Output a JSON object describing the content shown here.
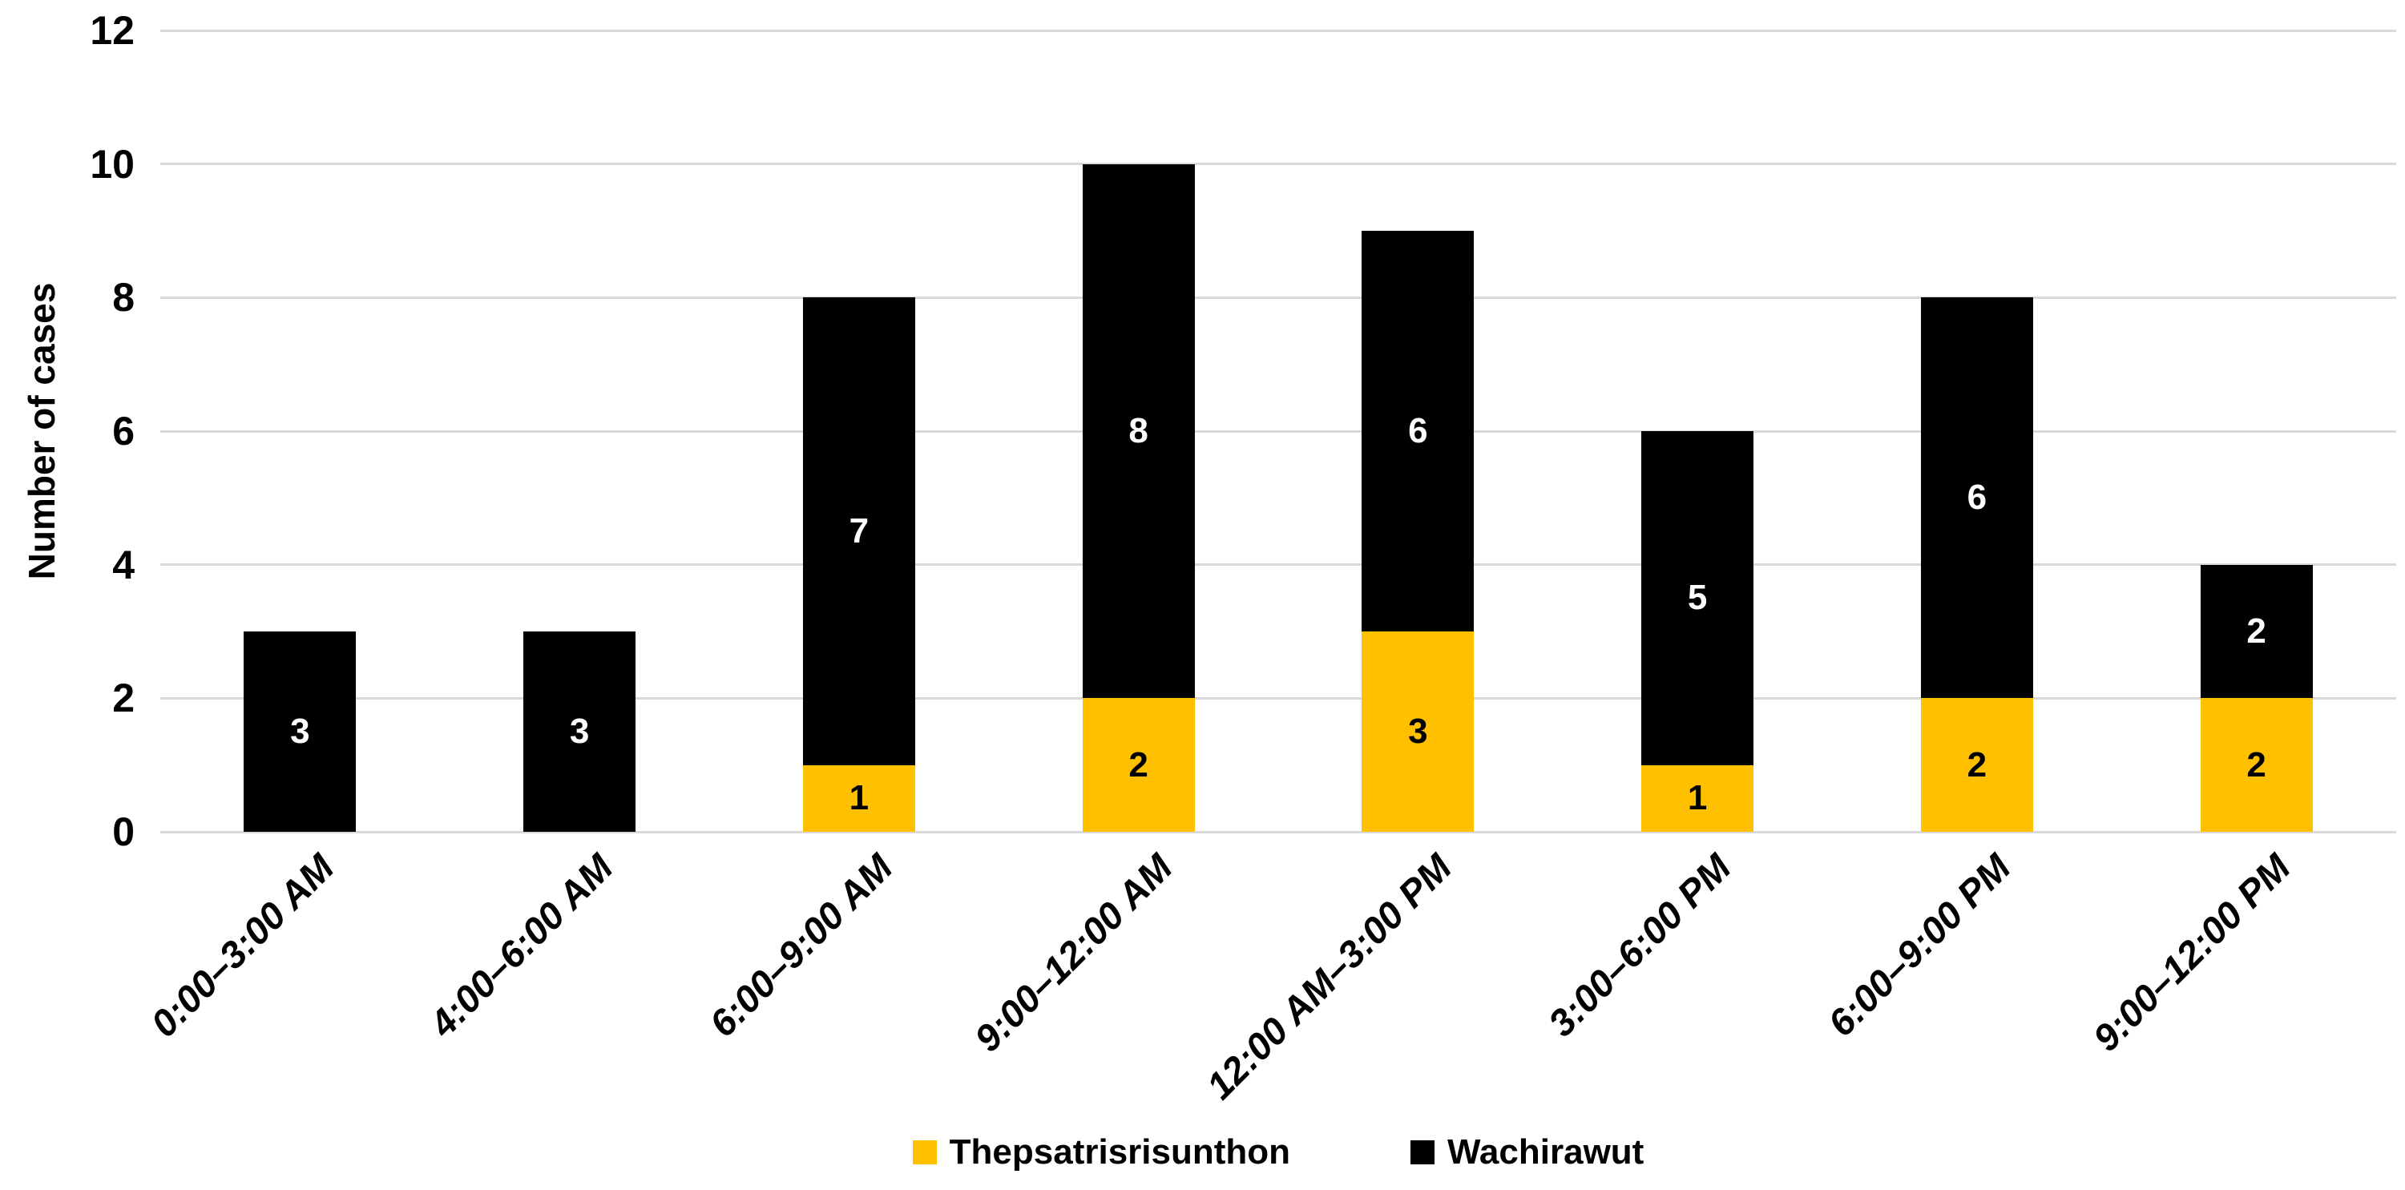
{
  "chart_data": {
    "type": "bar",
    "stacked": true,
    "title": "",
    "ylabel": "Number of cases",
    "xlabel": "",
    "categories": [
      "0:00–3:00 AM",
      "4:00–6:00 AM",
      "6:00–9:00 AM",
      "9:00–12:00 AM",
      "12:00 AM–3:00 PM",
      "3:00–6:00 PM",
      "6:00–9:00 PM",
      "9:00–12:00 PM"
    ],
    "series": [
      {
        "name": "Thepsatrisrisunthon",
        "color": "#FFC000",
        "label_color": "#000000",
        "values": [
          0,
          0,
          1,
          2,
          3,
          1,
          2,
          2
        ]
      },
      {
        "name": "Wachirawut",
        "color": "#000000",
        "label_color": "#FFFFFF",
        "values": [
          3,
          3,
          7,
          8,
          6,
          5,
          6,
          2
        ]
      }
    ],
    "ylim": [
      0,
      12
    ],
    "yticks": [
      0,
      2,
      4,
      6,
      8,
      10,
      12
    ],
    "grid": true,
    "gridline_color": "#D9D9D9",
    "legend_position": "bottom",
    "background": "#FFFFFF"
  }
}
